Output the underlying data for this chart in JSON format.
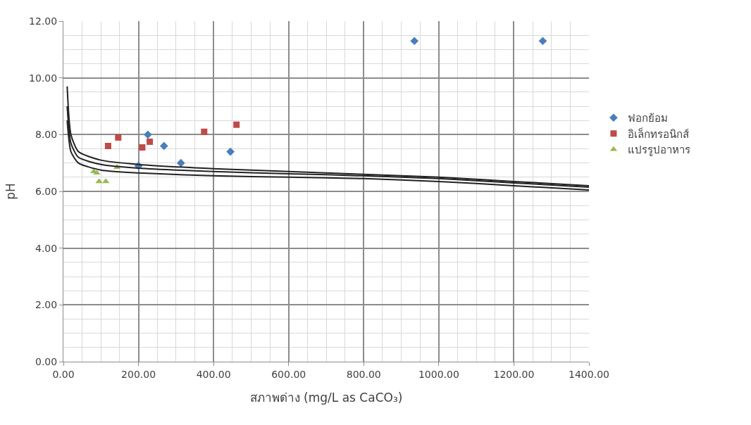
{
  "chart_data": {
    "type": "scatter",
    "xlabel": "สภาพด่าง (mg/L as CaCO₃)",
    "ylabel": "pH",
    "xlim": [
      0,
      1400
    ],
    "ylim": [
      0,
      12
    ],
    "xticks": [
      {
        "value": 0,
        "label": "0.00"
      },
      {
        "value": 200,
        "label": "200.00"
      },
      {
        "value": 400,
        "label": "400.00"
      },
      {
        "value": 600,
        "label": "600.00"
      },
      {
        "value": 800,
        "label": "800.00"
      },
      {
        "value": 1000,
        "label": "1000.00"
      },
      {
        "value": 1200,
        "label": "1200.00"
      },
      {
        "value": 1400,
        "label": "1400.00"
      }
    ],
    "yticks": [
      {
        "value": 0,
        "label": "0.00"
      },
      {
        "value": 2,
        "label": "2.00"
      },
      {
        "value": 4,
        "label": "4.00"
      },
      {
        "value": 6,
        "label": "6.00"
      },
      {
        "value": 8,
        "label": "8.00"
      },
      {
        "value": 10,
        "label": "10.00"
      },
      {
        "value": 12,
        "label": "12.00"
      }
    ],
    "grid": true,
    "legend": "right",
    "series": [
      {
        "name": "ฟอกย้อม",
        "color": "#4a7ebb",
        "marker": "diamond",
        "x": [
          935,
          1277,
          225,
          268,
          313,
          445,
          200
        ],
        "values": [
          11.3,
          11.3,
          8.0,
          7.6,
          7.0,
          7.4,
          6.9
        ]
      },
      {
        "name": "อิเล็กทรอนิกส์",
        "color": "#be4b48",
        "marker": "square",
        "x": [
          119,
          146,
          210,
          230,
          375,
          461
        ],
        "values": [
          7.6,
          7.9,
          7.55,
          7.75,
          8.1,
          8.35
        ]
      },
      {
        "name": "แปรรูปอาหาร",
        "color": "#98b954",
        "marker": "triangle",
        "x": [
          81,
          89,
          95,
          113,
          143
        ],
        "values": [
          6.7,
          6.65,
          6.35,
          6.35,
          6.85
        ]
      },
      {
        "type": "line",
        "color": "#222222",
        "marker": "none",
        "x": [
          10,
          20,
          40,
          100,
          200,
          400,
          600,
          800,
          1000,
          1200,
          1400
        ],
        "values": [
          9.7,
          8.0,
          7.4,
          7.1,
          6.95,
          6.8,
          6.7,
          6.6,
          6.5,
          6.35,
          6.2
        ]
      },
      {
        "type": "line",
        "color": "#222222",
        "marker": "none",
        "x": [
          10,
          20,
          40,
          100,
          200,
          400,
          600,
          800,
          1000,
          1200,
          1400
        ],
        "values": [
          9.0,
          7.7,
          7.2,
          6.95,
          6.82,
          6.7,
          6.62,
          6.55,
          6.45,
          6.3,
          6.15
        ]
      },
      {
        "type": "line",
        "color": "#222222",
        "marker": "none",
        "x": [
          10,
          20,
          40,
          100,
          200,
          400,
          600,
          800,
          1000,
          1200,
          1400
        ],
        "values": [
          8.5,
          7.4,
          7.0,
          6.75,
          6.65,
          6.55,
          6.5,
          6.45,
          6.35,
          6.2,
          6.05
        ]
      }
    ]
  }
}
